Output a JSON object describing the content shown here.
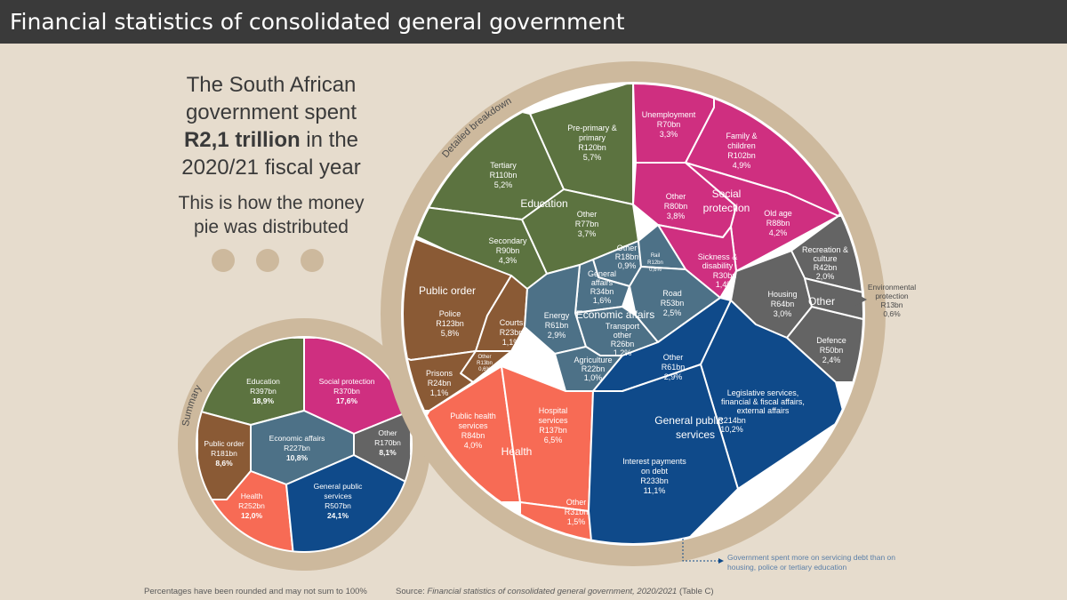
{
  "title": "Financial statistics of consolidated general government",
  "headline": {
    "line1": "The South African",
    "line2": "government spent",
    "amount": "R2,1 trillion",
    "line3_rest": " in the",
    "line4": "2020/21 fiscal year"
  },
  "subhead": {
    "line1": "This is how the money",
    "line2": "pie was distributed"
  },
  "colors": {
    "education": "#5c7340",
    "social": "#cf2f80",
    "public_order": "#8a5a35",
    "economic": "#4d7187",
    "health": "#f76b55",
    "general": "#0f4a8a",
    "other": "#646464",
    "ring": "#cdb99d",
    "background": "#e6dccd",
    "title_bar": "#3a3a3a"
  },
  "summary": {
    "label": "Summary",
    "education": {
      "name": "Education",
      "value": "R397bn",
      "pct": "18,9%"
    },
    "social": {
      "name": "Social protection",
      "value": "R370bn",
      "pct": "17,6%"
    },
    "public_order": {
      "name": "Public order",
      "value": "R181bn",
      "pct": "8,6%"
    },
    "economic": {
      "name": "Economic affairs",
      "value": "R227bn",
      "pct": "10,8%"
    },
    "other": {
      "name": "Other",
      "value": "R170bn",
      "pct": "8,1%"
    },
    "health": {
      "name": "Health",
      "value": "R252bn",
      "pct": "12,0%"
    },
    "general": {
      "name1": "General public",
      "name2": "services",
      "value": "R507bn",
      "pct": "24,1%"
    }
  },
  "detail": {
    "label": "Detailed breakdown",
    "education": {
      "label": "Education",
      "preprimary": {
        "name1": "Pre-primary &",
        "name2": "primary",
        "value": "R120bn",
        "pct": "5,7%"
      },
      "tertiary": {
        "name": "Tertiary",
        "value": "R110bn",
        "pct": "5,2%"
      },
      "other": {
        "name": "Other",
        "value": "R77bn",
        "pct": "3,7%"
      },
      "secondary": {
        "name": "Secondary",
        "value": "R90bn",
        "pct": "4,3%"
      }
    },
    "social": {
      "label1": "Social",
      "label2": "protection",
      "unemployment": {
        "name": "Unemployment",
        "value": "R70bn",
        "pct": "3,3%"
      },
      "family": {
        "name1": "Family &",
        "name2": "children",
        "value": "R102bn",
        "pct": "4,9%"
      },
      "other": {
        "name": "Other",
        "value": "R80bn",
        "pct": "3,8%"
      },
      "oldage": {
        "name": "Old age",
        "value": "R88bn",
        "pct": "4,2%"
      },
      "sickness": {
        "name1": "Sickness &",
        "name2": "disability",
        "value": "R30bn",
        "pct": "1,4%"
      }
    },
    "public_order": {
      "label": "Public order",
      "police": {
        "name": "Police",
        "value": "R123bn",
        "pct": "5,8%"
      },
      "courts": {
        "name": "Courts",
        "value": "R23bn",
        "pct": "1,1%"
      },
      "other": {
        "name": "Other",
        "value": "R13bn",
        "pct": "0,6%"
      },
      "prisons": {
        "name": "Prisons",
        "value": "R24bn",
        "pct": "1,1%"
      }
    },
    "economic": {
      "label": "Economic affairs",
      "other": {
        "name": "Other",
        "value": "R18bn",
        "pct": "0,9%"
      },
      "rail": {
        "name": "Rail",
        "value": "R12bn",
        "pct": "0,6%"
      },
      "general": {
        "name1": "General",
        "name2": "affairs",
        "value": "R34bn",
        "pct": "1,6%"
      },
      "road": {
        "name": "Road",
        "value": "R53bn",
        "pct": "2,5%"
      },
      "energy": {
        "name": "Energy",
        "value": "R61bn",
        "pct": "2,9%"
      },
      "transport": {
        "name1": "Transport",
        "name2": "other",
        "value": "R26bn",
        "pct": "1,2%"
      },
      "agriculture": {
        "name": "Agriculture",
        "value": "R22bn",
        "pct": "1,0%"
      }
    },
    "other": {
      "label": "Other",
      "recreation": {
        "name1": "Recreation &",
        "name2": "culture",
        "value": "R42bn",
        "pct": "2,0%"
      },
      "housing": {
        "name": "Housing",
        "value": "R64bn",
        "pct": "3,0%"
      },
      "defence": {
        "name": "Defence",
        "value": "R50bn",
        "pct": "2,4%"
      },
      "environment": {
        "name1": "Environmental",
        "name2": "protection",
        "value": "R13bn",
        "pct": "0,6%"
      }
    },
    "health": {
      "label": "Health",
      "public": {
        "name1": "Public health",
        "name2": "services",
        "value": "R84bn",
        "pct": "4,0%"
      },
      "hospital": {
        "name1": "Hospital",
        "name2": "services",
        "value": "R137bn",
        "pct": "6,5%"
      },
      "other": {
        "name": "Other",
        "value": "R31bn",
        "pct": "1,5%"
      }
    },
    "general": {
      "label1": "General public",
      "label2": "services",
      "other": {
        "name": "Other",
        "value": "R61bn",
        "pct": "2,9%"
      },
      "legislative": {
        "name1": "Legislative services,",
        "name2": "financial & fiscal affairs,",
        "name3": "external affairs",
        "value": "R214bn",
        "pct": "10,2%"
      },
      "interest": {
        "name1": "Interest payments",
        "name2": "on debt",
        "value": "R233bn",
        "pct": "11,1%"
      }
    }
  },
  "annotation": {
    "line1": "Government spent more on servicing debt than on",
    "line2": "housing, police or tertiary education"
  },
  "footnote": "Percentages have been rounded and may not sum to 100%",
  "source": {
    "prefix": "Source: ",
    "title": "Financial statistics of consolidated general government, 2020/2021",
    "suffix": " (Table C)"
  }
}
